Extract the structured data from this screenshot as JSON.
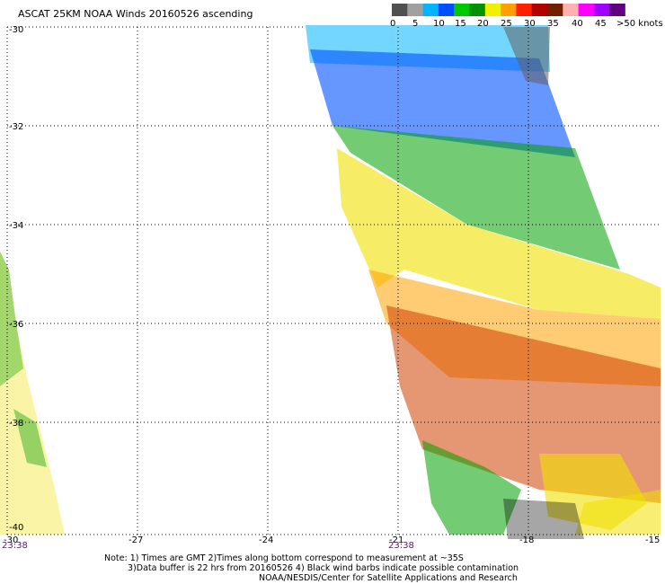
{
  "title": "ASCAT 25KM NOAA Winds 20160526 ascending",
  "legend": {
    "labels": [
      "0",
      "5",
      "10",
      "15",
      "20",
      "25",
      "30",
      "35",
      "40",
      "45",
      ">50 knots"
    ],
    "colors": [
      "#505050",
      "#a0a0a0",
      "#00b4ff",
      "#0050ff",
      "#00c800",
      "#009000",
      "#f0f000",
      "#ffa000",
      "#ff2000",
      "#b00000",
      "#702000",
      "#ffb0b0",
      "#ff00ff",
      "#a000ff",
      "#600080"
    ]
  },
  "axes": {
    "lat_ticks": [
      "-30",
      "-32",
      "-34",
      "-36",
      "-38",
      "-40"
    ],
    "lon_ticks": [
      "-30",
      "-27",
      "-24",
      "-21",
      "-18",
      "-15"
    ],
    "lat_range": [
      -40,
      -30
    ],
    "lon_range": [
      -30,
      -15
    ]
  },
  "time_labels": [
    "23:38",
    "23:38"
  ],
  "wind_bands": [
    {
      "speed_range_knots": "10-15",
      "color": "#00b4ff"
    },
    {
      "speed_range_knots": "15-20",
      "color": "#0050ff"
    },
    {
      "speed_range_knots": "20-25",
      "color": "#00a000"
    },
    {
      "speed_range_knots": "25-30",
      "color": "#f0e000"
    },
    {
      "speed_range_knots": "30-35",
      "color": "#ffa000"
    },
    {
      "speed_range_knots": "35-40",
      "color": "#d04000"
    },
    {
      "possible_contamination": true,
      "color": "#000000"
    }
  ],
  "notes": [
    "Note: 1) Times are GMT 2)Times along bottom correspond to measurement at ~35S",
    "3)Data buffer is 22 hrs from 20160526 4) Black wind barbs indicate possible contamination",
    "NOAA/NESDIS/Center for Satellite Applications and Research"
  ]
}
